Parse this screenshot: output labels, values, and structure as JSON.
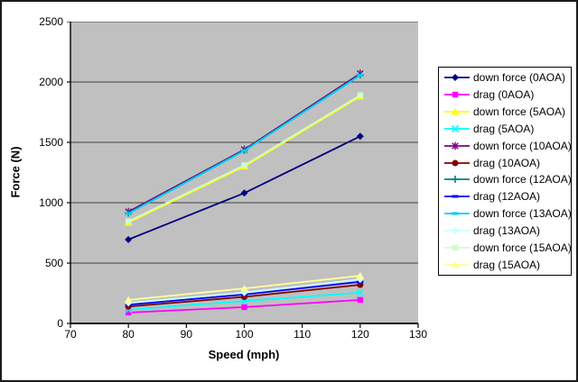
{
  "chart_data": {
    "type": "line",
    "title": "",
    "xlabel": "Speed (mph)",
    "ylabel": "Force (N)",
    "x": [
      80,
      100,
      120
    ],
    "xlim": [
      70,
      130
    ],
    "ylim": [
      0,
      2500
    ],
    "x_ticks": [
      70,
      80,
      90,
      100,
      110,
      120,
      130
    ],
    "y_ticks": [
      0,
      500,
      1000,
      1500,
      2000,
      2500
    ],
    "grid": "horizontal",
    "plot_bg": "#c0c0c0",
    "gridline_color": "#404040",
    "axis_color": "#000000",
    "legend_position": "right",
    "series": [
      {
        "name": "down force (0AOA)",
        "color": "#000080",
        "marker": "diamond",
        "values": [
          695,
          1080,
          1550
        ]
      },
      {
        "name": "drag (0AOA)",
        "color": "#FF00FF",
        "marker": "square",
        "values": [
          90,
          135,
          195
        ]
      },
      {
        "name": "down force (5AOA)",
        "color": "#FFFF00",
        "marker": "triangle",
        "values": [
          835,
          1300,
          1880
        ]
      },
      {
        "name": "drag (5AOA)",
        "color": "#00FFFF",
        "marker": "x",
        "values": [
          115,
          185,
          255
        ]
      },
      {
        "name": "down force (10AOA)",
        "color": "#800080",
        "marker": "asterisk",
        "values": [
          925,
          1440,
          2070
        ]
      },
      {
        "name": "drag (10AOA)",
        "color": "#800000",
        "marker": "circle",
        "values": [
          140,
          220,
          320
        ]
      },
      {
        "name": "down force (12AOA)",
        "color": "#008080",
        "marker": "plus",
        "values": [
          915,
          1435,
          2060
        ]
      },
      {
        "name": "drag (12AOA)",
        "color": "#0000FF",
        "marker": "dash",
        "values": [
          155,
          240,
          345
        ]
      },
      {
        "name": "down force (13AOA)",
        "color": "#00CCFF",
        "marker": "dash",
        "values": [
          910,
          1430,
          2055
        ]
      },
      {
        "name": "drag (13AOA)",
        "color": "#CCFFFF",
        "marker": "diamond",
        "values": [
          170,
          255,
          365
        ]
      },
      {
        "name": "down force (15AOA)",
        "color": "#CCFFCC",
        "marker": "square",
        "values": [
          845,
          1310,
          1890
        ]
      },
      {
        "name": "drag (15AOA)",
        "color": "#FFFF99",
        "marker": "triangle",
        "values": [
          195,
          290,
          395
        ]
      }
    ]
  }
}
